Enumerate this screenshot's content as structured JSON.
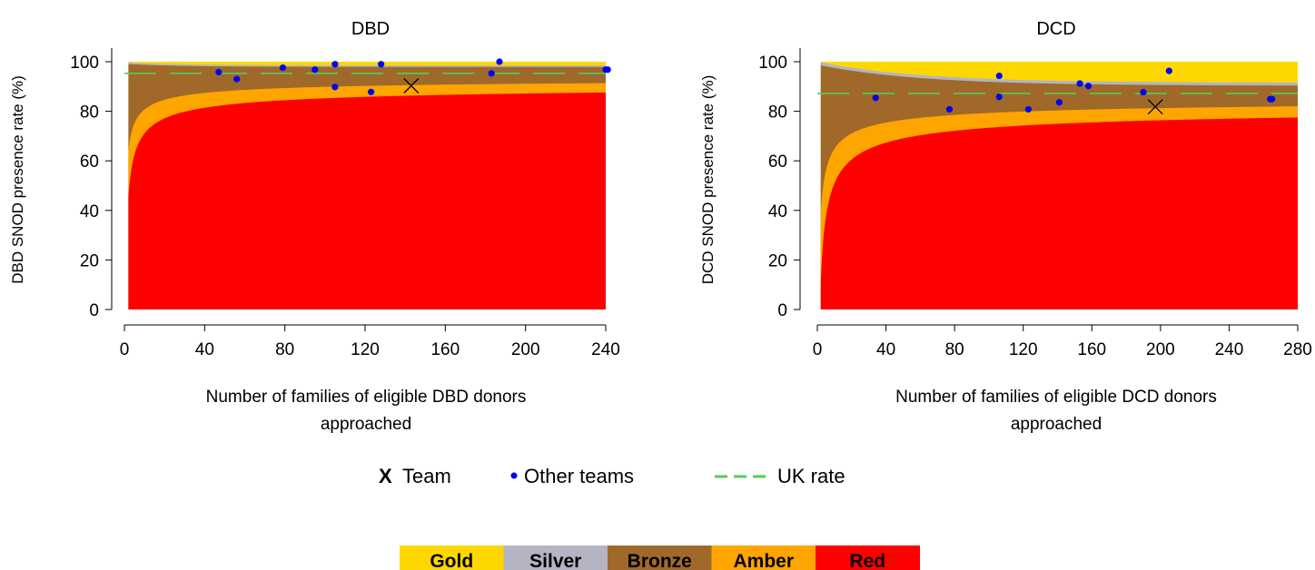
{
  "chart_data": [
    {
      "type": "area",
      "title": "DBD",
      "xlabel": [
        "Number of families of eligible DBD donors",
        "approached"
      ],
      "ylabel": "DBD SNOD presence rate (%)",
      "xlim": [
        0,
        240
      ],
      "ylim": [
        0,
        100
      ],
      "xticks": [
        "0",
        "40",
        "80",
        "120",
        "160",
        "200",
        "240"
      ],
      "yticks": [
        "0",
        "20",
        "40",
        "60",
        "80",
        "100"
      ],
      "uk_rate": 95.3,
      "team": {
        "x": 143,
        "y": 90.3
      },
      "other_teams": [
        {
          "x": 47,
          "y": 95.8
        },
        {
          "x": 56,
          "y": 93.0
        },
        {
          "x": 79,
          "y": 97.6
        },
        {
          "x": 95,
          "y": 96.8
        },
        {
          "x": 105,
          "y": 99.0
        },
        {
          "x": 105,
          "y": 89.8
        },
        {
          "x": 123,
          "y": 87.8
        },
        {
          "x": 128,
          "y": 99.0
        },
        {
          "x": 183,
          "y": 95.3
        },
        {
          "x": 187,
          "y": 100.0
        },
        {
          "x": 240,
          "y": 96.8
        },
        {
          "x": 241,
          "y": 96.8
        }
      ]
    },
    {
      "type": "area",
      "title": "DCD",
      "xlabel": [
        "Number of families of eligible DCD donors",
        "approached"
      ],
      "ylabel": "DCD SNOD presence rate (%)",
      "xlim": [
        0,
        280
      ],
      "ylim": [
        0,
        100
      ],
      "xticks": [
        "0",
        "40",
        "80",
        "120",
        "160",
        "200",
        "240",
        "280"
      ],
      "yticks": [
        "0",
        "20",
        "40",
        "60",
        "80",
        "100"
      ],
      "uk_rate": 87.2,
      "team": {
        "x": 197,
        "y": 81.8
      },
      "other_teams": [
        {
          "x": 34,
          "y": 85.4
        },
        {
          "x": 77,
          "y": 80.8
        },
        {
          "x": 106,
          "y": 94.3
        },
        {
          "x": 106,
          "y": 85.8
        },
        {
          "x": 123,
          "y": 80.8
        },
        {
          "x": 141,
          "y": 83.6
        },
        {
          "x": 153,
          "y": 91.2
        },
        {
          "x": 158,
          "y": 90.2
        },
        {
          "x": 190,
          "y": 87.7
        },
        {
          "x": 205,
          "y": 96.3
        },
        {
          "x": 264,
          "y": 84.9
        },
        {
          "x": 265,
          "y": 84.9
        }
      ]
    }
  ],
  "legend": {
    "team_symbol": "X",
    "team_label": "Team",
    "other_label": "Other teams",
    "uk_label": "UK rate"
  },
  "bands": [
    {
      "label": "Gold",
      "color": "#FFD700"
    },
    {
      "label": "Silver",
      "color": "#B4B4C3"
    },
    {
      "label": "Bronze",
      "color": "#A0692A"
    },
    {
      "label": "Amber",
      "color": "#FFA500"
    },
    {
      "label": "Red",
      "color": "#FF0000"
    }
  ],
  "colors": {
    "points": "#0000EE",
    "uk_line": "#55CC55"
  }
}
